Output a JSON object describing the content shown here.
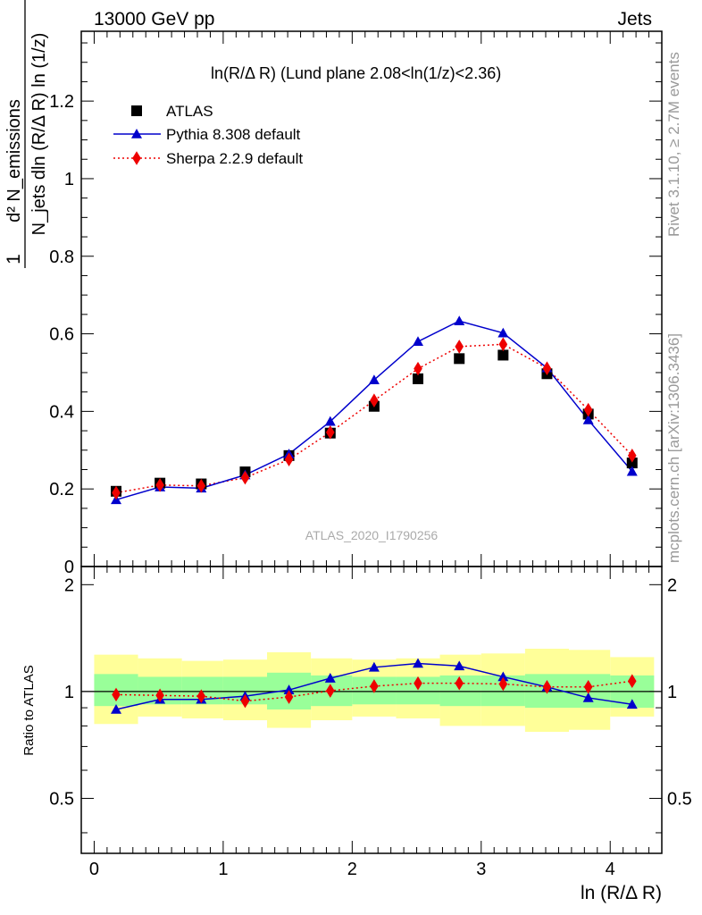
{
  "header": {
    "left": "13000 GeV pp",
    "right": "Jets"
  },
  "side": {
    "rivet": "Rivet 3.1.10, ≥ 2.7M events",
    "mcplots": "mcplots.cern.ch [arXiv:1306.3436]"
  },
  "chart_data": [
    {
      "type": "scatter",
      "title": "ln(R/Δ R) (Lund plane 2.08<ln(1/z)<2.36)",
      "ylabel": "1/N_jets d²N_emissions / dln(R/Δ R) ln(1/z)",
      "watermark": "ATLAS_2020_I1790256",
      "legend_position": "top-left",
      "grid": false,
      "xlim": [
        -0.1,
        4.4
      ],
      "ylim": [
        0,
        1.38
      ],
      "yticks": [
        "0",
        "0.2",
        "0.4",
        "0.6",
        "0.8",
        "1",
        "1.2"
      ],
      "x": [
        0.17,
        0.51,
        0.83,
        1.17,
        1.51,
        1.83,
        2.17,
        2.51,
        2.83,
        3.17,
        3.51,
        3.83,
        4.17
      ],
      "series": [
        {
          "name": "ATLAS",
          "color": "#000000",
          "marker": "square",
          "values": [
            0.194,
            0.215,
            0.213,
            0.244,
            0.286,
            0.344,
            0.413,
            0.484,
            0.536,
            0.545,
            0.497,
            0.393,
            0.267
          ]
        },
        {
          "name": "Pythia 8.308 default",
          "color": "#0000cc",
          "marker": "triangle",
          "line": "solid",
          "values": [
            0.172,
            0.205,
            0.202,
            0.236,
            0.29,
            0.374,
            0.481,
            0.58,
            0.633,
            0.602,
            0.512,
            0.378,
            0.245
          ]
        },
        {
          "name": "Sherpa 2.2.9 default",
          "color": "#ee0000",
          "marker": "diamond",
          "line": "dotted",
          "values": [
            0.19,
            0.21,
            0.208,
            0.229,
            0.276,
            0.346,
            0.428,
            0.51,
            0.567,
            0.573,
            0.511,
            0.404,
            0.286
          ]
        }
      ]
    },
    {
      "type": "scatter",
      "ylabel": "Ratio to ATLAS",
      "xlabel": "ln (R/Δ R)",
      "xlim": [
        -0.1,
        4.4
      ],
      "ylim": [
        0.35,
        2.25
      ],
      "xticks": [
        "0",
        "1",
        "2",
        "3",
        "4"
      ],
      "yticks": [
        "0.5",
        "1",
        "2"
      ],
      "y_scale": "log",
      "reference_line": 1,
      "bin_edges": [
        0.0,
        0.34,
        0.68,
        1.0,
        1.34,
        1.68,
        2.0,
        2.34,
        2.68,
        3.0,
        3.34,
        3.68,
        4.0,
        4.34
      ],
      "band_inner_colour": "#99ff99",
      "band_outer_colour": "#ffff99",
      "band_inner": [
        [
          0.91,
          1.12
        ],
        [
          0.92,
          1.1
        ],
        [
          0.92,
          1.1
        ],
        [
          0.92,
          1.1
        ],
        [
          0.89,
          1.13
        ],
        [
          0.91,
          1.11
        ],
        [
          0.92,
          1.1
        ],
        [
          0.92,
          1.1
        ],
        [
          0.91,
          1.11
        ],
        [
          0.91,
          1.11
        ],
        [
          0.9,
          1.12
        ],
        [
          0.9,
          1.12
        ],
        [
          0.9,
          1.11
        ]
      ],
      "band_outer": [
        [
          0.81,
          1.27
        ],
        [
          0.85,
          1.24
        ],
        [
          0.84,
          1.22
        ],
        [
          0.83,
          1.23
        ],
        [
          0.79,
          1.29
        ],
        [
          0.83,
          1.24
        ],
        [
          0.85,
          1.23
        ],
        [
          0.84,
          1.24
        ],
        [
          0.8,
          1.27
        ],
        [
          0.8,
          1.28
        ],
        [
          0.77,
          1.32
        ],
        [
          0.78,
          1.31
        ],
        [
          0.85,
          1.25
        ]
      ],
      "series": [
        {
          "name": "Pythia 8.308 default",
          "color": "#0000cc",
          "values": [
            0.89,
            0.95,
            0.95,
            0.97,
            1.01,
            1.09,
            1.17,
            1.2,
            1.18,
            1.1,
            1.03,
            0.96,
            0.92
          ]
        },
        {
          "name": "Sherpa 2.2.9 default",
          "color": "#ee0000",
          "values": [
            0.98,
            0.975,
            0.97,
            0.94,
            0.965,
            1.005,
            1.035,
            1.055,
            1.055,
            1.05,
            1.03,
            1.03,
            1.07
          ]
        }
      ]
    }
  ]
}
